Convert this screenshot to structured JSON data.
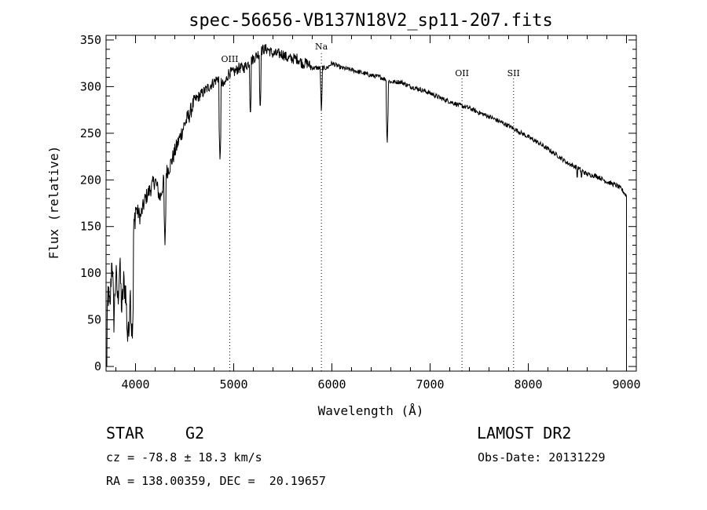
{
  "chart_data": {
    "type": "line",
    "title": "spec-56656-VB137N18V2_sp11-207.fits",
    "xlabel": "Wavelength (Å)",
    "ylabel": "Flux (relative)",
    "xlim": [
      3700,
      9100
    ],
    "ylim": [
      -5,
      355
    ],
    "xticks": [
      "4000",
      "5000",
      "6000",
      "7000",
      "8000",
      "9000"
    ],
    "xtick_values": [
      4000,
      5000,
      6000,
      7000,
      8000,
      9000
    ],
    "yticks": [
      "0",
      "50",
      "100",
      "150",
      "200",
      "250",
      "300",
      "350"
    ],
    "ytick_values": [
      0,
      50,
      100,
      150,
      200,
      250,
      300,
      350
    ],
    "lines": [
      {
        "label": "OIII",
        "x": 4960
      },
      {
        "label": "Na",
        "x": 5893
      },
      {
        "label": "OII",
        "x": 7325
      },
      {
        "label": "SII",
        "x": 7850
      }
    ],
    "series": [
      {
        "x": [
          3700,
          3720,
          3740,
          3760,
          3780,
          3800,
          3820,
          3840,
          3860,
          3880,
          3900,
          3920,
          3940,
          3960,
          3980,
          4000,
          4050,
          4100,
          4150,
          4200,
          4250,
          4300,
          4350,
          4400,
          4450,
          4500,
          4550,
          4600,
          4650,
          4700,
          4750,
          4800,
          4850,
          4900,
          4950,
          5000,
          5050,
          5100,
          5150,
          5200,
          5250,
          5300,
          5350,
          5400,
          5450,
          5500,
          5550,
          5600,
          5650,
          5700,
          5750,
          5800,
          5850,
          5900,
          5950,
          6000,
          6100,
          6200,
          6300,
          6400,
          6500,
          6600,
          6700,
          6800,
          6900,
          7000,
          7100,
          7200,
          7300,
          7400,
          7500,
          7600,
          7700,
          7800,
          7900,
          8000,
          8100,
          8200,
          8300,
          8400,
          8500,
          8600,
          8700,
          8800,
          8900,
          8950,
          9000
        ],
        "y": [
          0,
          80,
          60,
          120,
          50,
          100,
          70,
          110,
          60,
          90,
          80,
          30,
          100,
          40,
          140,
          170,
          160,
          180,
          190,
          200,
          180,
          205,
          215,
          230,
          245,
          260,
          270,
          285,
          290,
          295,
          300,
          305,
          310,
          300,
          315,
          315,
          320,
          320,
          325,
          330,
          335,
          340,
          340,
          335,
          335,
          335,
          330,
          330,
          330,
          325,
          325,
          320,
          320,
          320,
          320,
          325,
          320,
          318,
          315,
          312,
          310,
          305,
          305,
          300,
          297,
          293,
          288,
          284,
          280,
          277,
          272,
          268,
          263,
          258,
          252,
          246,
          240,
          233,
          226,
          218,
          213,
          206,
          204,
          198,
          194,
          190,
          183
        ]
      }
    ],
    "dips": [
      {
        "x": 4861,
        "y": 218
      },
      {
        "x": 5170,
        "y": 265
      },
      {
        "x": 5270,
        "y": 272
      },
      {
        "x": 5893,
        "y": 270
      },
      {
        "x": 6563,
        "y": 236
      },
      {
        "x": 8498,
        "y": 195
      },
      {
        "x": 8542,
        "y": 195
      },
      {
        "x": 8662,
        "y": 196
      },
      {
        "x": 4300,
        "y": 130
      },
      {
        "x": 3933,
        "y": 28
      },
      {
        "x": 3968,
        "y": 30
      }
    ]
  },
  "footer": {
    "object_class": "STAR",
    "subclass": "G2",
    "survey": "LAMOST DR2",
    "redshift": "cz = -78.8 ± 18.3 km/s",
    "obs_date": "Obs-Date: 20131229",
    "coords": "RA = 138.00359, DEC =  20.19657"
  }
}
